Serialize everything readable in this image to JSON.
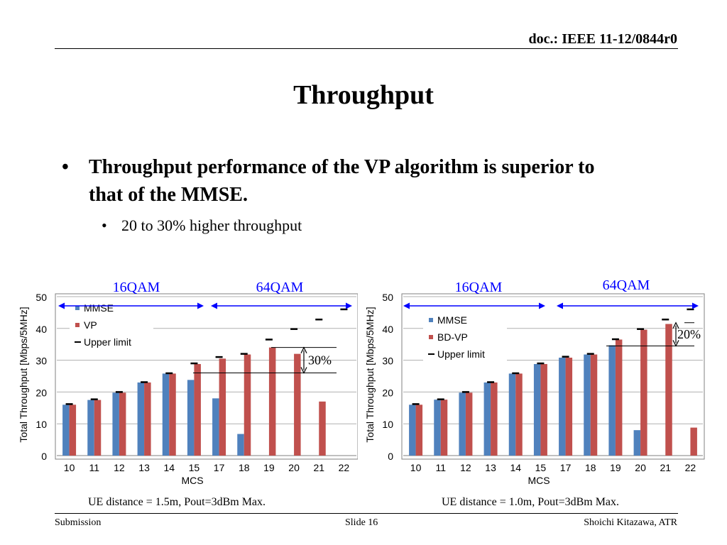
{
  "header": {
    "doc_id": "doc.: IEEE 11-12/0844r0"
  },
  "slide": {
    "title": "Throughput",
    "bullet_main": "Throughput performance of the VP algorithm is superior to that of the MMSE.",
    "bullet_sub": "20 to 30% higher throughput"
  },
  "footer": {
    "left": "Submission",
    "center": "Slide 16",
    "right": "Shoichi Kitazawa, ATR"
  },
  "colors": {
    "series1": "#4f81bd",
    "series2": "#c0504d",
    "limit": "#000000",
    "arrow": "#0000ff",
    "grid": "#b0b0b0"
  },
  "chart_data": [
    {
      "type": "bar",
      "ylabel": "Total  Throughput  [Mbps/5MHz]",
      "xlabel": "MCS",
      "ylim": [
        0,
        50
      ],
      "yticks": [
        0,
        10,
        20,
        30,
        40,
        50
      ],
      "grid": true,
      "legend_position": "top-left",
      "categories": [
        "10",
        "11",
        "12",
        "13",
        "14",
        "15",
        "17",
        "18",
        "19",
        "20",
        "21",
        "22"
      ],
      "series": [
        {
          "name": "MMSE",
          "values": [
            16,
            17.5,
            19.8,
            23,
            25.8,
            23.8,
            18,
            6.8,
            0,
            0,
            0,
            0
          ]
        },
        {
          "name": "VP",
          "values": [
            16,
            17.5,
            19.8,
            23,
            25.8,
            28.8,
            30.5,
            31.8,
            34,
            32,
            17,
            0
          ]
        }
      ],
      "limit": {
        "name": "Upper limit",
        "values": [
          16.2,
          17.7,
          20,
          23.1,
          25.9,
          29,
          31,
          32,
          36.5,
          39.8,
          42.8,
          46
        ]
      },
      "annotations": {
        "region1": "16QAM",
        "region2": "64QAM",
        "gain": "30%",
        "gain_from": 26,
        "gain_to": 34
      },
      "caption": "UE distance = 1.5m, Pout=3dBm Max."
    },
    {
      "type": "bar",
      "ylabel": "Total  Throughput  [Mbps/5MHz]",
      "xlabel": "MCS",
      "ylim": [
        0,
        50
      ],
      "yticks": [
        0,
        10,
        20,
        30,
        40,
        50
      ],
      "grid": true,
      "legend_position": "top-left",
      "categories": [
        "10",
        "11",
        "12",
        "13",
        "14",
        "15",
        "17",
        "18",
        "19",
        "20",
        "21",
        "22"
      ],
      "series": [
        {
          "name": "MMSE",
          "values": [
            16,
            17.6,
            19.8,
            23,
            25.8,
            28.8,
            30.8,
            31.8,
            34.7,
            8,
            0,
            0
          ]
        },
        {
          "name": "BD-VP",
          "values": [
            16,
            17.6,
            19.8,
            23,
            25.8,
            28.8,
            30.8,
            31.8,
            36.5,
            39.6,
            41.4,
            8.8
          ]
        }
      ],
      "limit": {
        "name": "Upper limit",
        "values": [
          16.2,
          17.7,
          20,
          23.1,
          25.9,
          29,
          31.1,
          32,
          36.6,
          39.8,
          42.8,
          46
        ]
      },
      "annotations": {
        "region1": "16QAM",
        "region2": "64QAM",
        "gain": "20%",
        "gain_from": 34.5,
        "gain_to": 41.8
      },
      "caption": "UE distance = 1.0m, Pout=3dBm Max."
    }
  ]
}
